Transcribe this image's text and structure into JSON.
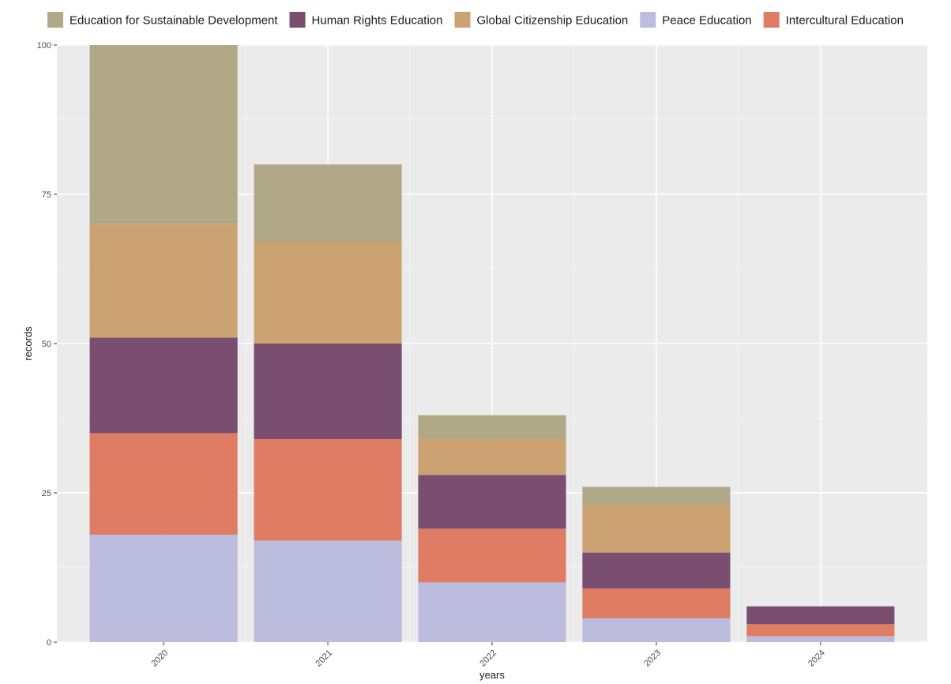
{
  "chart_data": {
    "type": "bar",
    "stacked": true,
    "title": "",
    "xlabel": "years",
    "ylabel": "records",
    "categories": [
      "2020",
      "2021",
      "2022",
      "2023",
      "2024"
    ],
    "ylim": [
      0,
      100
    ],
    "yticks": [
      0,
      25,
      50,
      75,
      100
    ],
    "grid": true,
    "legend_position": "top",
    "legend_order": [
      "Education for Sustainable Development",
      "Human Rights Education",
      "Global Citizenship Education",
      "Peace Education",
      "Intercultural Education"
    ],
    "series": [
      {
        "name": "Peace Education",
        "color": "#BCBDDE",
        "values": [
          18,
          17,
          10,
          4,
          1
        ]
      },
      {
        "name": "Intercultural Education",
        "color": "#DE7C64",
        "values": [
          17,
          17,
          9,
          5,
          2
        ]
      },
      {
        "name": "Human Rights Education",
        "color": "#7A4E70",
        "values": [
          16,
          16,
          9,
          6,
          3
        ]
      },
      {
        "name": "Global Citizenship Education",
        "color": "#CCA272",
        "values": [
          19,
          17,
          6,
          8,
          0
        ]
      },
      {
        "name": "Education for Sustainable Development",
        "color": "#B0A886",
        "values": [
          30,
          13,
          4,
          3,
          0
        ]
      }
    ]
  }
}
